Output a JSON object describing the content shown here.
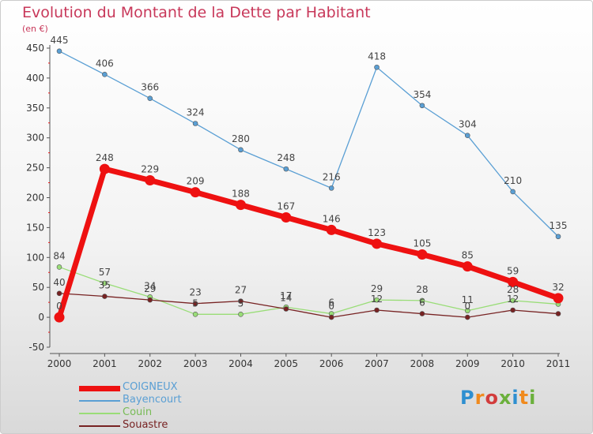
{
  "title": "Evolution du Montant de la Dette par Habitant",
  "unit_label": "(en €)",
  "logo": {
    "text": "Proxiti",
    "colors": [
      "#2e8fd0",
      "#f08a1e",
      "#d23c3c",
      "#6bb03c",
      "#2e8fd0",
      "#f08a1e",
      "#6bb03c"
    ]
  },
  "chart_data": {
    "type": "line",
    "x": [
      "2000",
      "2001",
      "2002",
      "2003",
      "2004",
      "2005",
      "2006",
      "2007",
      "2008",
      "2009",
      "2010",
      "2011"
    ],
    "ylim": [
      -50,
      450
    ],
    "yticks": [
      "-50",
      "0",
      "50",
      "100",
      "150",
      "200",
      "250",
      "300",
      "350",
      "400",
      "450"
    ],
    "grid": false,
    "legend_position": "bottom-left",
    "series": [
      {
        "name": "COIGNEUX",
        "color": "#ee1111",
        "emphasis": true,
        "values": [
          0,
          248,
          229,
          209,
          188,
          167,
          146,
          123,
          105,
          85,
          59,
          32
        ],
        "labels": [
          "0",
          "248",
          "229",
          "209",
          "188",
          "167",
          "146",
          "123",
          "105",
          "85",
          "59",
          "32"
        ]
      },
      {
        "name": "Bayencourt",
        "color": "#5a9fd4",
        "values": [
          445,
          406,
          366,
          324,
          280,
          248,
          216,
          418,
          354,
          304,
          210,
          135
        ],
        "labels": [
          "445",
          "406",
          "366",
          "324",
          "280",
          "248",
          "216",
          "418",
          "354",
          "304",
          "210",
          "135"
        ]
      },
      {
        "name": "Couin",
        "color": "#99dd77",
        "values": [
          84,
          57,
          34,
          5,
          5,
          17,
          6,
          29,
          28,
          11,
          28,
          22
        ],
        "labels": [
          "84",
          "57",
          "34",
          "5",
          "5",
          "17",
          "6",
          "29",
          "28",
          "11",
          "28",
          ""
        ]
      },
      {
        "name": "Souastre",
        "color": "#772222",
        "values": [
          40,
          35,
          29,
          23,
          27,
          14,
          0,
          12,
          6,
          0,
          12,
          6
        ],
        "labels": [
          "40",
          "35",
          "29",
          "23",
          "27",
          "14",
          "0",
          "12",
          "6",
          "0",
          "12",
          ""
        ]
      }
    ]
  }
}
